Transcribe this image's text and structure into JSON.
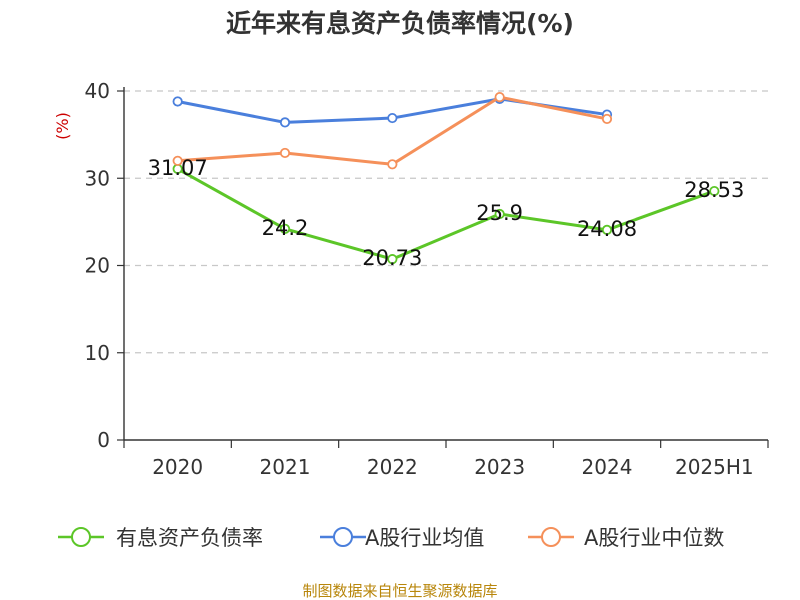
{
  "chart_data": {
    "type": "line",
    "title": "近年来有息资产负债率情况(%)",
    "ylabel": "(%)",
    "xlabel": "",
    "categories": [
      "2020",
      "2021",
      "2022",
      "2023",
      "2024",
      "2025H1"
    ],
    "ylim": [
      0,
      40
    ],
    "yticks": [
      0,
      10,
      20,
      30,
      40
    ],
    "grid": true,
    "legend_position": "bottom",
    "series": [
      {
        "name": "有息资产负债率",
        "color": "#5cc628",
        "values": [
          31.07,
          24.2,
          20.73,
          25.9,
          24.08,
          28.53
        ],
        "labels": [
          "31.07",
          "24.2",
          "20.73",
          "25.9",
          "24.08",
          "28.53"
        ]
      },
      {
        "name": "A股行业均值",
        "color": "#4a7fdc",
        "values": [
          38.8,
          36.4,
          36.9,
          39.1,
          37.3,
          null
        ]
      },
      {
        "name": "A股行业中位数",
        "color": "#f5905a",
        "values": [
          32.0,
          32.9,
          31.6,
          39.3,
          36.8,
          null
        ]
      }
    ],
    "source": "制图数据来自恒生聚源数据库"
  }
}
